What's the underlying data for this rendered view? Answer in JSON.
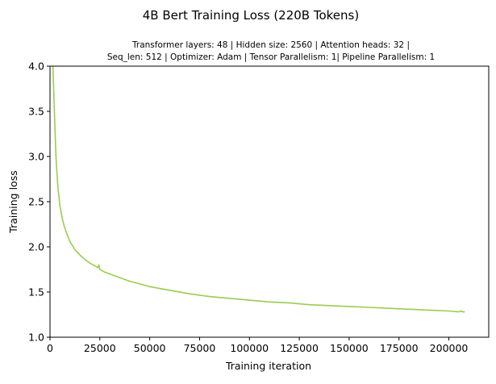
{
  "chart_data": {
    "type": "line",
    "title": "4B Bert Training Loss (220B Tokens)",
    "subtitle_lines": [
      "Transformer layers: 48 | Hidden size: 2560 | Attention heads: 32 |",
      "Seq_len: 512 | Optimizer: Adam | Tensor Parallelism: 1| Pipeline Parallelism: 1"
    ],
    "xlabel": "Training iteration",
    "ylabel": "Training loss",
    "xlim": [
      0,
      220000
    ],
    "ylim": [
      1.0,
      4.0
    ],
    "x_ticks": [
      0,
      25000,
      50000,
      75000,
      100000,
      125000,
      150000,
      175000,
      200000
    ],
    "y_ticks": [
      1.0,
      1.5,
      2.0,
      2.5,
      3.0,
      3.5,
      4.0
    ],
    "x_tick_labels": [
      "0",
      "25000",
      "50000",
      "75000",
      "100000",
      "125000",
      "150000",
      "175000",
      "200000"
    ],
    "y_tick_labels": [
      "1.0",
      "1.5",
      "2.0",
      "2.5",
      "3.0",
      "3.5",
      "4.0"
    ],
    "grid": false,
    "series": [
      {
        "color": "#9acd4f",
        "x": [
          1500,
          2000,
          2500,
          3000,
          3500,
          4000,
          5000,
          6000,
          7000,
          8000,
          10000,
          12500,
          15000,
          17500,
          20000,
          22500,
          24000,
          24500,
          25000,
          27500,
          30000,
          35000,
          40000,
          45000,
          50000,
          60000,
          70000,
          80000,
          90000,
          100000,
          110000,
          120000,
          130000,
          140000,
          150000,
          160000,
          170000,
          180000,
          190000,
          200000,
          205000,
          206000,
          207000,
          208000
        ],
        "y": [
          4.0,
          3.65,
          3.3,
          3.0,
          2.8,
          2.65,
          2.45,
          2.33,
          2.24,
          2.17,
          2.06,
          1.97,
          1.91,
          1.86,
          1.82,
          1.79,
          1.77,
          1.8,
          1.75,
          1.72,
          1.7,
          1.66,
          1.62,
          1.59,
          1.56,
          1.52,
          1.48,
          1.45,
          1.43,
          1.41,
          1.39,
          1.38,
          1.36,
          1.35,
          1.34,
          1.33,
          1.32,
          1.31,
          1.3,
          1.29,
          1.28,
          1.29,
          1.28,
          1.28
        ]
      }
    ]
  }
}
